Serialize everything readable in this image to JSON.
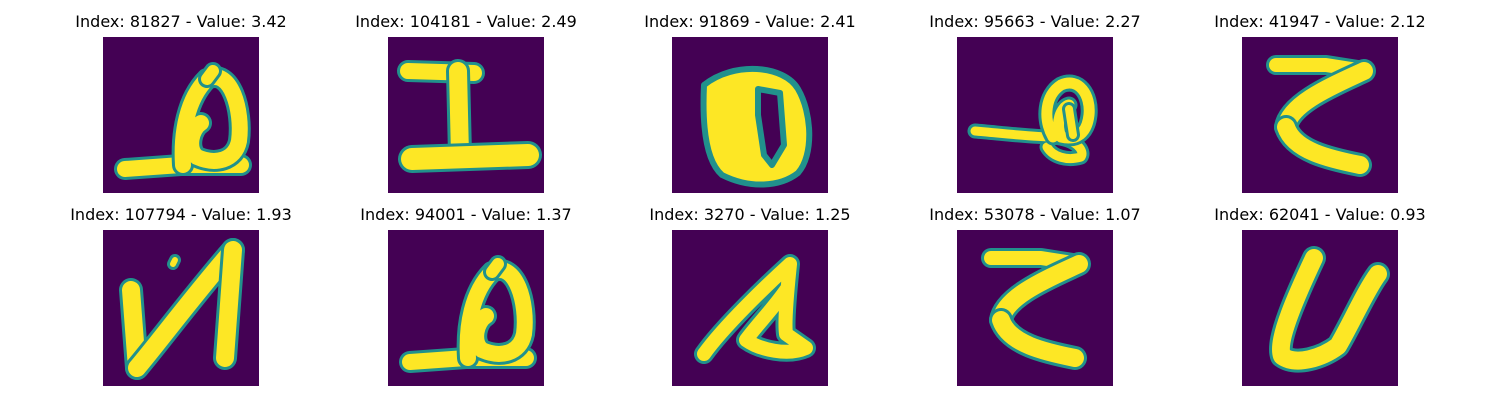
{
  "chart_data": {
    "type": "heatmap",
    "colormap": "viridis",
    "background_color": "#440154",
    "foreground_color": "#fde725",
    "edge_color": "#21918c",
    "rows": 2,
    "columns": 5,
    "axes_visible": false,
    "panels": [
      {
        "index": "81827",
        "value": "3.42",
        "title": "Index: 81827 - Value: 3.42",
        "glyph": "b-loop"
      },
      {
        "index": "104181",
        "value": "2.49",
        "title": "Index: 104181 - Value: 2.49",
        "glyph": "I-beam"
      },
      {
        "index": "91869",
        "value": "2.41",
        "title": "Index: 91869 - Value: 2.41",
        "glyph": "bold-B"
      },
      {
        "index": "95663",
        "value": "2.27",
        "title": "Index: 95663 - Value: 2.27",
        "glyph": "b-flourish"
      },
      {
        "index": "41947",
        "value": "2.12",
        "title": "Index: 41947 - Value: 2.12",
        "glyph": "reversed-z"
      },
      {
        "index": "107794",
        "value": "1.93",
        "title": "Index: 107794 - Value: 1.93",
        "glyph": "N"
      },
      {
        "index": "94001",
        "value": "1.37",
        "title": "Index: 94001 - Value: 1.37",
        "glyph": "b-loop"
      },
      {
        "index": "3270",
        "value": "1.25",
        "title": "Index: 3270 - Value: 1.25",
        "glyph": "alpha"
      },
      {
        "index": "53078",
        "value": "1.07",
        "title": "Index: 53078 - Value: 1.07",
        "glyph": "reversed-z"
      },
      {
        "index": "62041",
        "value": "0.93",
        "title": "Index: 62041 - Value: 0.93",
        "glyph": "U"
      }
    ]
  }
}
